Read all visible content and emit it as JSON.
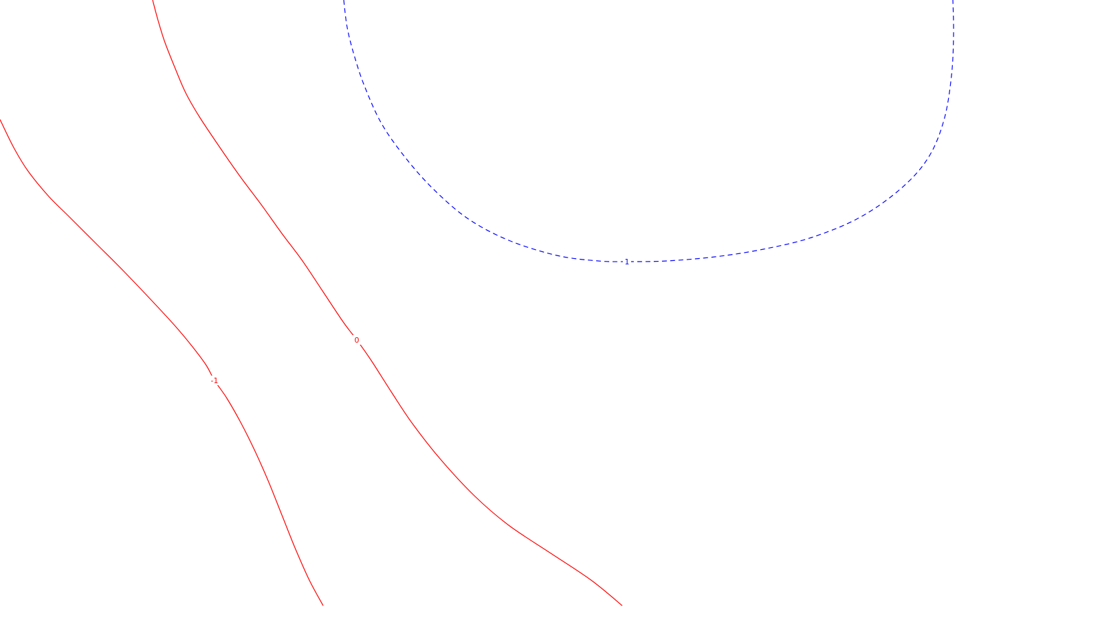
{
  "chart_data": {
    "type": "line",
    "subtype": "contour",
    "title": "",
    "xlabel": "",
    "ylabel": "",
    "grid": false,
    "legend": "none",
    "levels": [
      {
        "label": "-1",
        "value": -1,
        "color": "#ff0000",
        "style": "solid",
        "points": [
          [
            0,
            174
          ],
          [
            20,
            215
          ],
          [
            40,
            248
          ],
          [
            70,
            285
          ],
          [
            100,
            315
          ],
          [
            140,
            355
          ],
          [
            180,
            395
          ],
          [
            220,
            437
          ],
          [
            255,
            475
          ],
          [
            280,
            505
          ],
          [
            300,
            532
          ],
          [
            312,
            554
          ],
          [
            330,
            580
          ],
          [
            350,
            615
          ],
          [
            370,
            655
          ],
          [
            390,
            700
          ],
          [
            410,
            750
          ],
          [
            430,
            800
          ],
          [
            450,
            845
          ],
          [
            470,
            882
          ]
        ]
      },
      {
        "label": "0",
        "value": 0,
        "color": "#ff0000",
        "style": "solid",
        "points": [
          [
            222,
            0
          ],
          [
            230,
            30
          ],
          [
            240,
            62
          ],
          [
            255,
            100
          ],
          [
            270,
            135
          ],
          [
            290,
            170
          ],
          [
            320,
            215
          ],
          [
            350,
            258
          ],
          [
            380,
            298
          ],
          [
            410,
            340
          ],
          [
            440,
            380
          ],
          [
            470,
            425
          ],
          [
            500,
            470
          ],
          [
            519,
            495
          ],
          [
            540,
            525
          ],
          [
            570,
            572
          ],
          [
            600,
            617
          ],
          [
            640,
            668
          ],
          [
            690,
            722
          ],
          [
            740,
            765
          ],
          [
            800,
            805
          ],
          [
            860,
            845
          ],
          [
            905,
            882
          ]
        ]
      },
      {
        "label": "1",
        "value": 1,
        "color": "#0000ff",
        "style": "dashed",
        "points": [
          [
            500,
            0
          ],
          [
            505,
            40
          ],
          [
            515,
            80
          ],
          [
            530,
            125
          ],
          [
            555,
            180
          ],
          [
            590,
            230
          ],
          [
            630,
            275
          ],
          [
            680,
            318
          ],
          [
            740,
            350
          ],
          [
            810,
            372
          ],
          [
            870,
            380
          ],
          [
            912,
            381
          ],
          [
            970,
            380
          ],
          [
            1040,
            374
          ],
          [
            1110,
            363
          ],
          [
            1180,
            346
          ],
          [
            1250,
            317
          ],
          [
            1310,
            275
          ],
          [
            1350,
            230
          ],
          [
            1373,
            175
          ],
          [
            1384,
            110
          ],
          [
            1387,
            50
          ],
          [
            1386,
            0
          ]
        ]
      }
    ],
    "labels": [
      {
        "text": "-1",
        "series": 0,
        "at": [
          312,
          554
        ]
      },
      {
        "text": "0",
        "series": 1,
        "at": [
          519,
          495
        ]
      },
      {
        "text": "1",
        "series": 2,
        "at": [
          912,
          381
        ]
      }
    ]
  }
}
